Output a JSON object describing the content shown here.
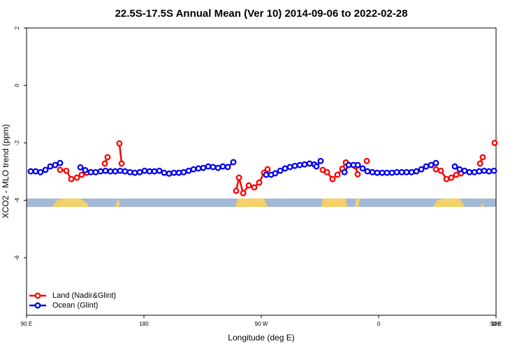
{
  "chart_data": {
    "type": "line",
    "title": "22.5S-17.5S Annual Mean (Ver 10)   2014-09-06 to 2022-02-28",
    "x_label": "Longitude (deg E)",
    "y_label": "XCO2 - MLO trend (ppm)",
    "xlim": [
      90,
      450
    ],
    "xticks": [
      {
        "value": 90,
        "label": "90 E"
      },
      {
        "value": 180,
        "label": "180"
      },
      {
        "value": 270,
        "label": "90 W"
      },
      {
        "value": 360,
        "label": "0"
      },
      {
        "value": 450,
        "label": "90 E"
      },
      {
        "value": 540,
        "label": "180"
      }
    ],
    "ylim": [
      -8,
      2
    ],
    "yticks": [
      2,
      0,
      -2,
      -4,
      -6
    ],
    "legend_position": "bottom-left",
    "series": [
      {
        "name": "Land (Nadir&Glint)",
        "color": "#ff0000",
        "x": [
          115.7,
          120.5,
          124.3,
          128.6,
          132.3,
          136.1,
          150.0,
          152.1,
          161.2,
          162.9,
          250.7,
          252.9,
          256.1,
          260.4,
          264.6,
          268.4,
          272.1,
          274.8,
          317.1,
          320.4,
          324.6,
          328.4,
          332.1,
          334.8,
          342.3,
          343.9,
          350.9,
          403.9,
          407.7,
          412.0,
          415.7,
          419.5,
          423.2,
          437.7,
          439.8,
          448.9
        ],
        "values": [
          -2.94,
          -2.97,
          -3.26,
          -3.21,
          -3.11,
          -3.04,
          -2.72,
          -2.5,
          -2.02,
          -2.72,
          -3.67,
          -3.21,
          -3.75,
          -3.48,
          -3.55,
          -3.38,
          -3.04,
          -2.92,
          -2.94,
          -3.02,
          -3.26,
          -3.11,
          -2.9,
          -2.68,
          -2.82,
          -3.09,
          -2.63,
          -2.92,
          -2.97,
          -3.26,
          -3.21,
          -3.11,
          -3.06,
          -2.72,
          -2.5,
          -2.0
        ]
      },
      {
        "name": "Ocean (Glint)",
        "color": "#0000ee",
        "x": [
          93.2,
          97.0,
          100.7,
          104.5,
          108.2,
          112.0,
          115.7,
          131.3,
          135.0,
          139.3,
          143.0,
          146.8,
          150.5,
          154.3,
          158.0,
          161.8,
          165.5,
          169.3,
          173.0,
          176.8,
          180.5,
          184.3,
          188.0,
          191.8,
          195.5,
          199.3,
          203.0,
          206.8,
          210.5,
          214.3,
          218.0,
          221.8,
          225.5,
          229.3,
          233.0,
          236.8,
          240.5,
          244.3,
          248.6,
          273.7,
          277.5,
          280.7,
          284.5,
          288.2,
          292.0,
          295.7,
          299.5,
          303.2,
          307.0,
          310.7,
          312.3,
          315.5,
          333.8,
          337.0,
          340.7,
          344.0,
          347.7,
          351.4,
          355.2,
          358.9,
          362.7,
          366.4,
          370.2,
          373.9,
          377.7,
          381.4,
          385.2,
          388.9,
          392.7,
          396.4,
          400.2,
          403.9,
          418.4,
          422.1,
          425.9,
          429.6,
          433.4,
          437.1,
          440.9,
          444.6,
          448.4
        ],
        "values": [
          -2.99,
          -2.99,
          -3.02,
          -2.94,
          -2.82,
          -2.77,
          -2.7,
          -2.85,
          -2.95,
          -3.02,
          -3.02,
          -2.99,
          -2.97,
          -2.99,
          -2.99,
          -2.97,
          -2.99,
          -3.02,
          -3.04,
          -3.02,
          -2.97,
          -2.99,
          -2.99,
          -2.97,
          -3.04,
          -3.07,
          -3.04,
          -3.04,
          -3.02,
          -2.97,
          -2.92,
          -2.89,
          -2.87,
          -2.82,
          -2.84,
          -2.87,
          -2.82,
          -2.84,
          -2.67,
          -3.11,
          -3.11,
          -3.06,
          -2.97,
          -2.89,
          -2.84,
          -2.8,
          -2.77,
          -2.75,
          -2.72,
          -2.75,
          -2.82,
          -2.63,
          -3.02,
          -2.77,
          -2.77,
          -2.77,
          -2.89,
          -2.99,
          -3.02,
          -3.04,
          -3.04,
          -3.04,
          -3.04,
          -3.02,
          -3.02,
          -3.02,
          -3.02,
          -2.99,
          -2.92,
          -2.82,
          -2.77,
          -2.7,
          -2.82,
          -2.92,
          -2.97,
          -3.02,
          -3.02,
          -2.99,
          -2.97,
          -2.99,
          -2.97
        ]
      }
    ]
  }
}
